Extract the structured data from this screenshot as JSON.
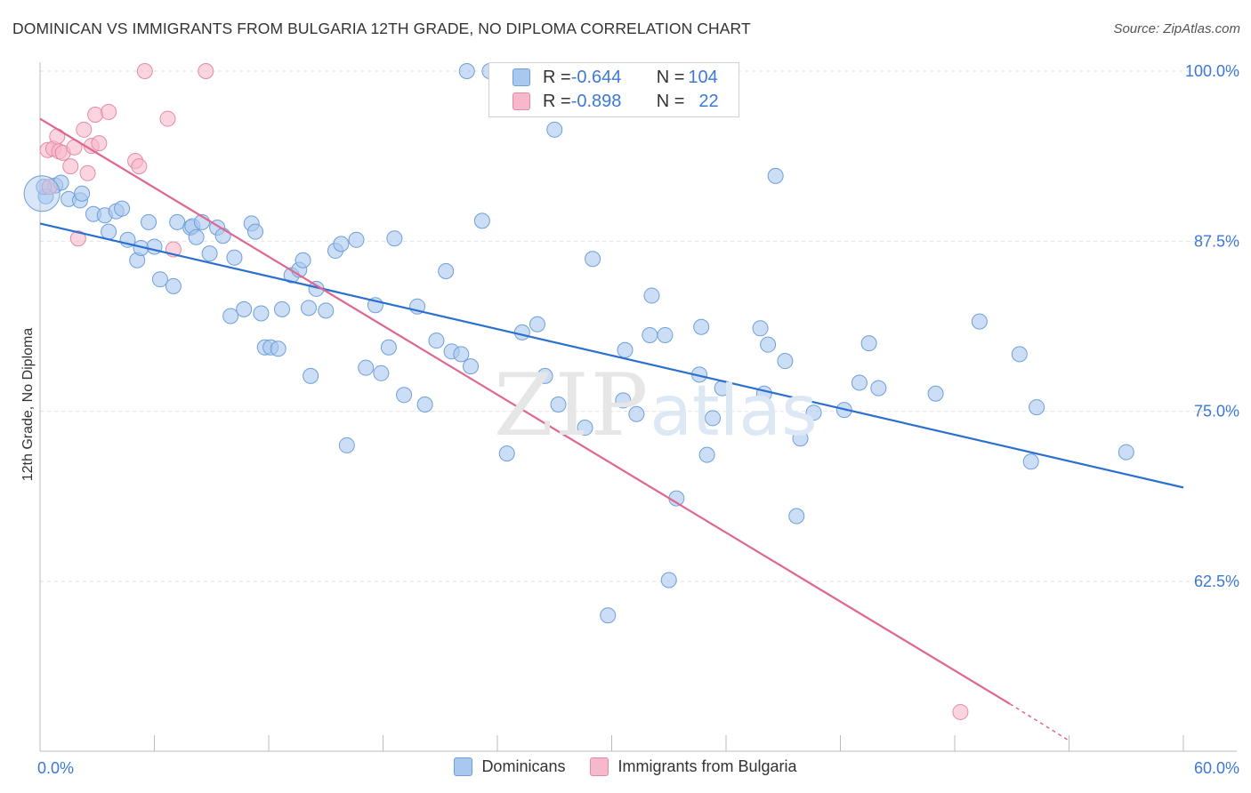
{
  "title": "DOMINICAN VS IMMIGRANTS FROM BULGARIA 12TH GRADE, NO DIPLOMA CORRELATION CHART",
  "source": "Source: ZipAtlas.com",
  "watermark": {
    "zip": "ZIP",
    "atlas": "atlas"
  },
  "legend_top": {
    "rows": [
      {
        "r_label": "R = ",
        "r_value": "-0.644",
        "n_label": "N = ",
        "n_value": "104"
      },
      {
        "r_label": "R = ",
        "r_value": "-0.898",
        "n_label": "N = ",
        "n_value": "22"
      }
    ]
  },
  "colors": {
    "blue_fill": "#a9c8f0",
    "blue_stroke": "#6f9fd8",
    "blue_line": "#2b6fd0",
    "pink_fill": "#f6b9cb",
    "pink_stroke": "#e58aa6",
    "pink_line": "#e06690",
    "axis_text": "#3c78d8"
  },
  "chart_data": {
    "type": "scatter",
    "title": "DOMINICAN VS IMMIGRANTS FROM BULGARIA 12TH GRADE, NO DIPLOMA CORRELATION CHART",
    "xlabel": "",
    "ylabel": "12th Grade, No Diploma",
    "xlim": [
      0,
      60
    ],
    "ylim": [
      50,
      101
    ],
    "x_tick_labels": [
      "0.0%",
      "60.0%"
    ],
    "y_ticks": [
      62.5,
      75.0,
      87.5,
      100.0
    ],
    "y_tick_labels": [
      "62.5%",
      "75.0%",
      "87.5%",
      "100.0%"
    ],
    "grid": true,
    "series": [
      {
        "name": "Dominicans",
        "color": "#a9c8f0",
        "trend": {
          "x0": 0,
          "y0": 88.8,
          "x1": 60,
          "y1": 69.4
        },
        "points": [
          [
            0.3,
            90.8
          ],
          [
            0.8,
            91.6
          ],
          [
            1.1,
            91.8
          ],
          [
            1.5,
            90.6
          ],
          [
            2.1,
            90.5
          ],
          [
            2.2,
            91.0
          ],
          [
            2.8,
            89.5
          ],
          [
            3.4,
            89.4
          ],
          [
            3.6,
            88.2
          ],
          [
            4.0,
            89.7
          ],
          [
            4.3,
            89.9
          ],
          [
            4.6,
            87.6
          ],
          [
            5.1,
            86.1
          ],
          [
            5.3,
            87.0
          ],
          [
            5.7,
            88.9
          ],
          [
            6.0,
            87.1
          ],
          [
            6.3,
            84.7
          ],
          [
            7.0,
            84.2
          ],
          [
            7.2,
            88.9
          ],
          [
            7.9,
            88.5
          ],
          [
            8.0,
            88.6
          ],
          [
            8.2,
            87.8
          ],
          [
            8.5,
            88.9
          ],
          [
            8.9,
            86.6
          ],
          [
            9.3,
            88.5
          ],
          [
            9.6,
            87.9
          ],
          [
            10.0,
            82.0
          ],
          [
            10.2,
            86.3
          ],
          [
            10.7,
            82.5
          ],
          [
            11.1,
            88.8
          ],
          [
            11.3,
            88.2
          ],
          [
            11.6,
            82.2
          ],
          [
            11.8,
            79.7
          ],
          [
            12.1,
            79.7
          ],
          [
            12.5,
            79.6
          ],
          [
            12.7,
            82.5
          ],
          [
            13.2,
            85.0
          ],
          [
            13.6,
            85.4
          ],
          [
            13.8,
            86.1
          ],
          [
            14.1,
            82.6
          ],
          [
            14.2,
            77.6
          ],
          [
            14.5,
            84.0
          ],
          [
            15.0,
            82.4
          ],
          [
            15.5,
            86.8
          ],
          [
            15.8,
            87.3
          ],
          [
            16.1,
            72.5
          ],
          [
            16.6,
            87.6
          ],
          [
            17.1,
            78.2
          ],
          [
            17.6,
            82.8
          ],
          [
            17.9,
            77.8
          ],
          [
            18.3,
            79.7
          ],
          [
            18.6,
            87.7
          ],
          [
            19.1,
            76.2
          ],
          [
            19.8,
            82.7
          ],
          [
            20.2,
            75.5
          ],
          [
            20.8,
            80.2
          ],
          [
            21.3,
            85.3
          ],
          [
            21.6,
            79.4
          ],
          [
            22.1,
            79.2
          ],
          [
            22.6,
            78.3
          ],
          [
            22.4,
            100.0
          ],
          [
            23.2,
            89.0
          ],
          [
            23.6,
            100.0
          ],
          [
            24.5,
            71.9
          ],
          [
            25.3,
            80.8
          ],
          [
            26.1,
            81.4
          ],
          [
            26.5,
            77.6
          ],
          [
            27.0,
            95.7
          ],
          [
            27.2,
            75.5
          ],
          [
            28.6,
            73.8
          ],
          [
            29.0,
            86.2
          ],
          [
            29.8,
            60.0
          ],
          [
            30.6,
            75.8
          ],
          [
            30.7,
            79.5
          ],
          [
            31.3,
            74.8
          ],
          [
            32.0,
            80.6
          ],
          [
            32.1,
            83.5
          ],
          [
            32.8,
            80.6
          ],
          [
            33.0,
            62.6
          ],
          [
            33.4,
            68.6
          ],
          [
            34.6,
            77.7
          ],
          [
            34.7,
            81.2
          ],
          [
            35.0,
            71.8
          ],
          [
            35.3,
            74.5
          ],
          [
            35.8,
            76.7
          ],
          [
            37.8,
            81.1
          ],
          [
            38.0,
            76.3
          ],
          [
            38.2,
            79.9
          ],
          [
            38.6,
            92.3
          ],
          [
            39.1,
            78.7
          ],
          [
            39.7,
            67.3
          ],
          [
            39.9,
            73.0
          ],
          [
            40.6,
            74.9
          ],
          [
            42.2,
            75.1
          ],
          [
            43.0,
            77.1
          ],
          [
            43.5,
            80.0
          ],
          [
            44.0,
            76.7
          ],
          [
            47.0,
            76.3
          ],
          [
            49.3,
            81.6
          ],
          [
            51.4,
            79.2
          ],
          [
            52.0,
            71.3
          ],
          [
            52.3,
            75.3
          ],
          [
            57.0,
            72.0
          ],
          [
            0.2,
            91.5
          ]
        ]
      },
      {
        "name": "Immigrants from Bulgaria",
        "color": "#f6b9cb",
        "trend": {
          "x0": 0,
          "y0": 96.5,
          "x1": 50.9,
          "y1": 53.5,
          "dash_x1": 54.0,
          "dash_y1": 50.8
        },
        "points": [
          [
            0.4,
            94.2
          ],
          [
            0.7,
            94.3
          ],
          [
            0.9,
            95.2
          ],
          [
            1.0,
            94.1
          ],
          [
            1.2,
            94.0
          ],
          [
            1.6,
            93.0
          ],
          [
            1.8,
            94.4
          ],
          [
            2.0,
            87.7
          ],
          [
            2.3,
            95.7
          ],
          [
            2.5,
            92.5
          ],
          [
            2.7,
            94.5
          ],
          [
            2.9,
            96.8
          ],
          [
            3.1,
            94.7
          ],
          [
            3.6,
            97.0
          ],
          [
            5.0,
            93.4
          ],
          [
            5.2,
            93.0
          ],
          [
            5.5,
            100.0
          ],
          [
            6.7,
            96.5
          ],
          [
            7.0,
            86.9
          ],
          [
            8.7,
            100.0
          ],
          [
            0.5,
            91.5
          ],
          [
            48.3,
            52.9
          ]
        ]
      }
    ]
  },
  "bottom_legend": [
    "Dominicans",
    "Immigrants from Bulgaria"
  ]
}
